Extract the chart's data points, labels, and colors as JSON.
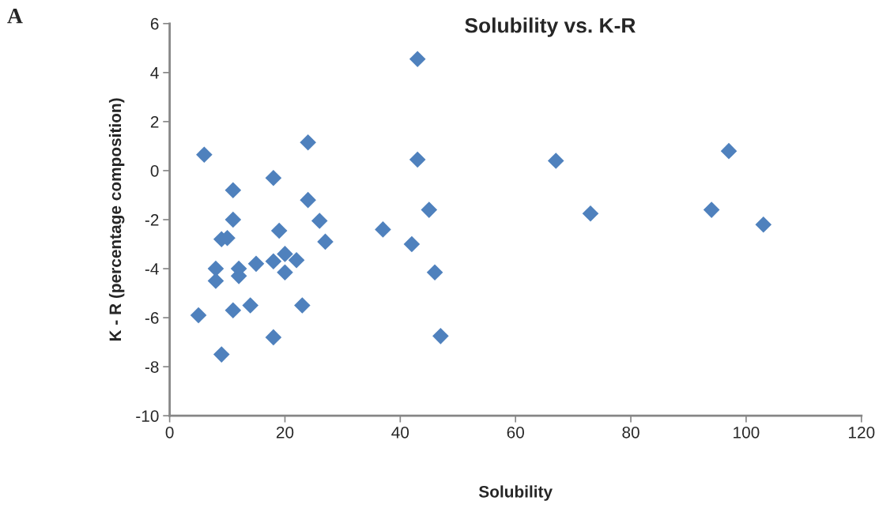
{
  "chart_data": {
    "type": "scatter",
    "title": "Solubility vs. K-R",
    "xlabel": "Solubility",
    "ylabel": "K - R (percentage composition)",
    "annotations": [
      "A"
    ],
    "x": [
      5,
      6,
      8,
      8,
      9,
      9,
      10,
      11,
      11,
      11,
      12,
      12,
      14,
      15,
      18,
      18,
      18,
      19,
      20,
      20,
      22,
      23,
      24,
      24,
      26,
      27,
      37,
      42,
      43,
      43,
      45,
      46,
      47,
      67,
      73,
      94,
      97,
      103
    ],
    "series": [
      {
        "color": "#4f81bd",
        "values": [
          -5.9,
          0.65,
          -4.0,
          -4.5,
          -2.8,
          -7.5,
          -2.75,
          -0.8,
          -2.0,
          -5.7,
          -4.0,
          -4.3,
          -5.5,
          -3.8,
          -0.3,
          -3.7,
          -6.8,
          -2.45,
          -3.4,
          -4.15,
          -3.65,
          -5.5,
          1.15,
          -1.2,
          -2.05,
          -2.9,
          -2.4,
          -3.0,
          4.55,
          0.45,
          -1.6,
          -4.15,
          -6.75,
          0.4,
          -1.75,
          -1.6,
          0.8,
          -2.2
        ]
      }
    ],
    "xlim": [
      0,
      120
    ],
    "xticks": [
      0,
      20,
      40,
      60,
      80,
      100,
      120
    ],
    "ylim": [
      -10,
      6
    ],
    "yticks": [
      -10,
      -8,
      -6,
      -4,
      -2,
      0,
      2,
      4,
      6
    ],
    "marker": "diamond",
    "grid": false,
    "legend": false
  }
}
